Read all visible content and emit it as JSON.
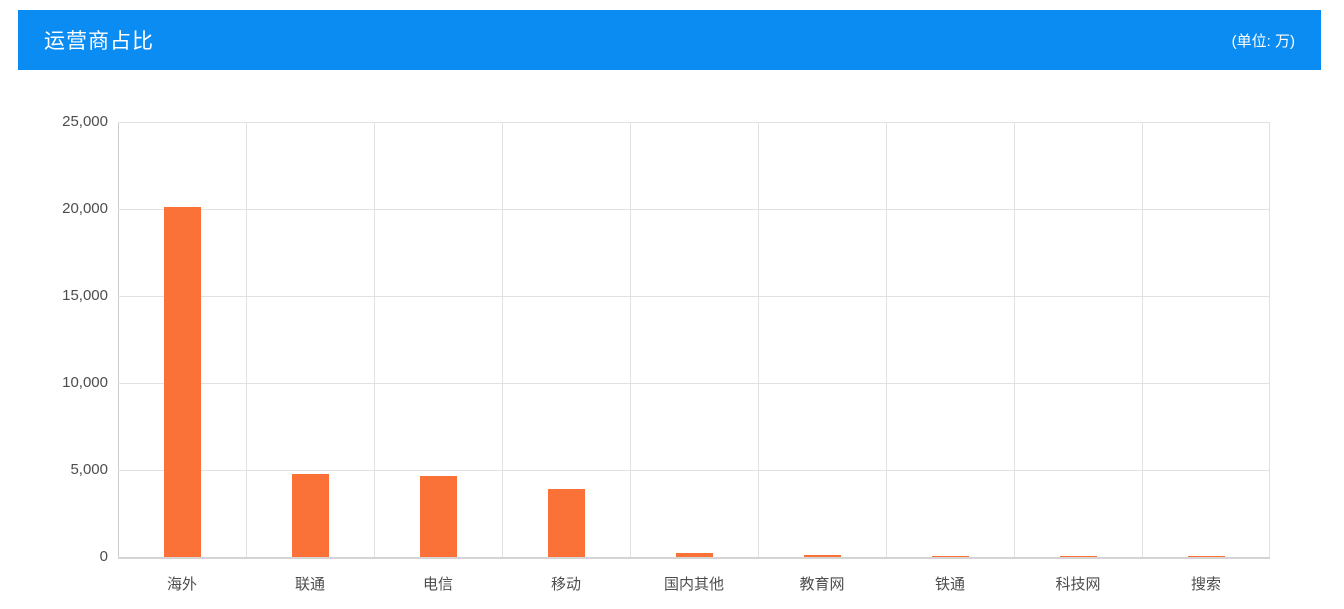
{
  "header": {
    "title": "运营商占比",
    "unit_label": "(单位: 万)",
    "bg_color": "#0a8cf2",
    "text_color": "#ffffff"
  },
  "chart_data": {
    "type": "bar",
    "title": "运营商占比",
    "unit": "万",
    "categories": [
      "海外",
      "联通",
      "电信",
      "移动",
      "国内其他",
      "教育网",
      "铁通",
      "科技网",
      "搜索"
    ],
    "values": [
      20100,
      4750,
      4650,
      3900,
      240,
      100,
      50,
      15,
      5
    ],
    "xlabel": "",
    "ylabel": "",
    "ylim": [
      0,
      25000
    ],
    "y_ticks": [
      0,
      5000,
      10000,
      15000,
      20000,
      25000
    ],
    "y_tick_labels": [
      "0",
      "5,000",
      "10,000",
      "15,000",
      "20,000",
      "25,000"
    ],
    "bar_color": "#fb7239",
    "grid": true,
    "legend_position": "none"
  },
  "colors": {
    "grid_line": "#e2e2e2",
    "axis_line": "#cccccc",
    "baseline": "#d4d4d4",
    "tick_text": "#4d4d4d",
    "background": "#ffffff"
  }
}
